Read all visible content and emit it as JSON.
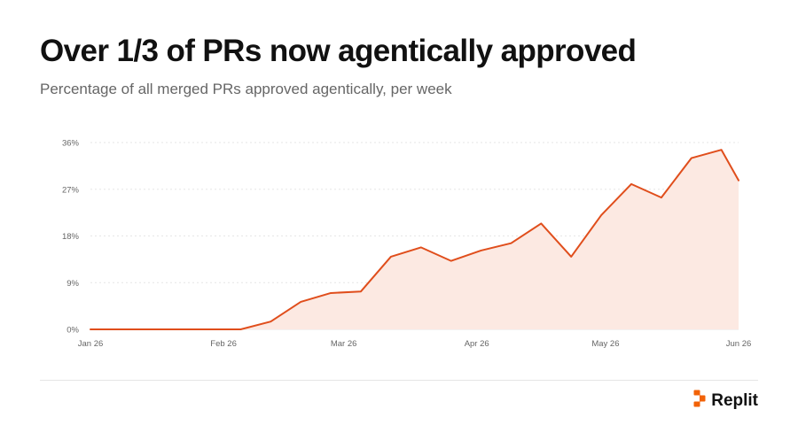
{
  "header": {
    "title": "Over 1/3 of PRs now agentically approved",
    "subtitle": "Percentage of all merged PRs approved agentically, per week"
  },
  "brand": {
    "name": "Replit",
    "logo_icon": "replit-logo-icon",
    "logo_color": "#F26207"
  },
  "colors": {
    "line": "#E04E1C",
    "area": "#FCE9E2",
    "grid": "#E6E6E6",
    "tick_text": "#666666"
  },
  "chart_data": {
    "type": "area",
    "title": "Over 1/3 of PRs now agentically approved",
    "subtitle": "Percentage of all merged PRs approved agentically, per week",
    "xlabel": "",
    "ylabel": "",
    "ylim": [
      0,
      36
    ],
    "yticks": [
      0,
      9,
      18,
      27,
      36
    ],
    "ytick_labels": [
      "0%",
      "9%",
      "18%",
      "27%",
      "36%"
    ],
    "ytick_suffix": "%",
    "xlim": [
      "2026-01-01",
      "2026-06-01"
    ],
    "xticks": [
      "2026-01-01",
      "2026-02-01",
      "2026-03-01",
      "2026-04-01",
      "2026-05-01",
      "2026-06-01"
    ],
    "xtick_labels": [
      "Jan 26",
      "Feb 26",
      "Mar 26",
      "Apr 26",
      "May 26",
      "Jun 26"
    ],
    "grid": true,
    "legend": "none",
    "series": [
      {
        "x": [
          "2026-01-01",
          "2026-01-08",
          "2026-01-15",
          "2026-01-22",
          "2026-01-29",
          "2026-02-05",
          "2026-02-12",
          "2026-02-19",
          "2026-02-26",
          "2026-03-05",
          "2026-03-12",
          "2026-03-19",
          "2026-03-26",
          "2026-04-02",
          "2026-04-09",
          "2026-04-16",
          "2026-04-23",
          "2026-04-30",
          "2026-05-07",
          "2026-05-14",
          "2026-05-21",
          "2026-05-28",
          "2026-06-01"
        ],
        "y": [
          0,
          0,
          0,
          0,
          0,
          0,
          1.5,
          5.3,
          7.0,
          7.3,
          14.0,
          15.8,
          13.2,
          15.2,
          16.6,
          20.4,
          14.0,
          22.0,
          28.0,
          25.4,
          33.0,
          34.6,
          28.7
        ]
      }
    ]
  }
}
